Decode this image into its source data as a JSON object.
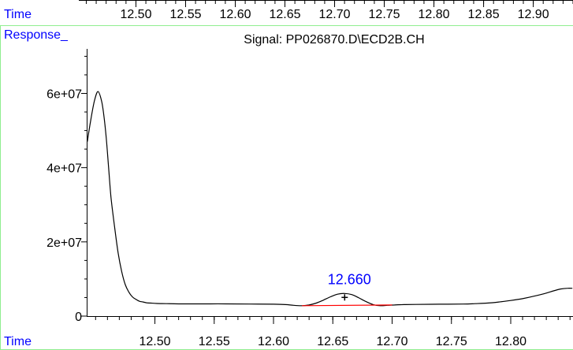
{
  "top_axis": {
    "label": "Time",
    "ticks": [
      "12.50",
      "12.55",
      "12.60",
      "12.65",
      "12.70",
      "12.75",
      "12.80",
      "12.85",
      "12.90"
    ],
    "tick_values": [
      12.5,
      12.55,
      12.6,
      12.65,
      12.7,
      12.75,
      12.8,
      12.85,
      12.9
    ],
    "range": [
      12.4425,
      12.94
    ]
  },
  "colors": {
    "axis_label": "#0000ff",
    "panel_border": "#90ee90",
    "trace": "#000000",
    "baseline": "#ff0000",
    "peak_label": "#0000ff"
  },
  "chart_data": {
    "type": "line",
    "title": "Signal: PP026870.D\\ECD2B.CH",
    "ylabel": "Response_",
    "xlabel": "Time",
    "xlim": [
      12.4425,
      12.8525
    ],
    "ylim": [
      0,
      72000000
    ],
    "x_ticks": [
      "12.50",
      "12.55",
      "12.60",
      "12.65",
      "12.70",
      "12.75",
      "12.80"
    ],
    "x_tick_values": [
      12.5,
      12.55,
      12.6,
      12.65,
      12.7,
      12.75,
      12.8
    ],
    "y_ticks": [
      "0",
      "2e+07",
      "4e+07",
      "6e+07"
    ],
    "y_tick_values": [
      0,
      20000000,
      40000000,
      60000000
    ],
    "grid": false,
    "series": [
      {
        "x": [
          12.443,
          12.446,
          12.449,
          12.452,
          12.455,
          12.457,
          12.459,
          12.461,
          12.463,
          12.466,
          12.469,
          12.472,
          12.475,
          12.478,
          12.481,
          12.484,
          12.487,
          12.49,
          12.493,
          12.497,
          12.502,
          12.51,
          12.52,
          12.54,
          12.56,
          12.58,
          12.6,
          12.61,
          12.617,
          12.624,
          12.63,
          12.636,
          12.642,
          12.648,
          12.654,
          12.66,
          12.666,
          12.672,
          12.678,
          12.684,
          12.69,
          12.696,
          12.702,
          12.71,
          12.72,
          12.74,
          12.76,
          12.77,
          12.78,
          12.79,
          12.8,
          12.81,
          12.82,
          12.83,
          12.836,
          12.842,
          12.848,
          12.852
        ],
        "y": [
          47000000,
          53000000,
          58000000,
          60500000,
          58000000,
          54000000,
          48000000,
          40000000,
          32000000,
          24000000,
          17000000,
          12000000,
          8500000,
          6500000,
          5200000,
          4500000,
          4000000,
          3800000,
          3600000,
          3500000,
          3400000,
          3350000,
          3300000,
          3300000,
          3300000,
          3250000,
          3200000,
          3100000,
          2900000,
          2800000,
          3000000,
          3500000,
          4300000,
          5200000,
          5900000,
          6100000,
          5800000,
          4900000,
          3900000,
          3100000,
          2800000,
          2900000,
          3000000,
          3100000,
          3150000,
          3200000,
          3250000,
          3350000,
          3500000,
          3800000,
          4200000,
          4700000,
          5400000,
          6200000,
          6800000,
          7300000,
          7500000,
          7500000
        ]
      }
    ],
    "peak": {
      "label": "12.660",
      "x": 12.66,
      "y": 6100000,
      "marker": "+",
      "baseline": {
        "x": [
          12.624,
          12.7
        ],
        "y": [
          2800000,
          3000000
        ]
      }
    }
  }
}
